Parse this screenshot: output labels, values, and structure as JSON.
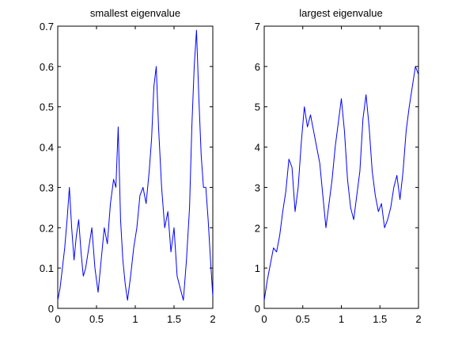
{
  "colors": {
    "line": "#0000ff",
    "axes": "#000000",
    "background": "#ffffff"
  },
  "chart_data": [
    {
      "type": "line",
      "title": "smallest eigenvalue",
      "xlabel": "",
      "ylabel": "",
      "xlim": [
        0,
        2
      ],
      "ylim": [
        0,
        0.7
      ],
      "xticks": [
        0,
        0.5,
        1,
        1.5,
        2
      ],
      "xtick_labels": [
        "0",
        "0.5",
        "1",
        "1.5",
        "2"
      ],
      "yticks": [
        0,
        0.1,
        0.2,
        0.3,
        0.4,
        0.5,
        0.6,
        0.7
      ],
      "ytick_labels": [
        "0",
        "0.1",
        "0.2",
        "0.3",
        "0.4",
        "0.5",
        "0.6",
        "0.7"
      ],
      "grid": false,
      "series": [
        {
          "color": "#0000ff",
          "x": [
            0,
            0.03,
            0.06,
            0.09,
            0.12,
            0.15,
            0.18,
            0.21,
            0.24,
            0.27,
            0.3,
            0.33,
            0.36,
            0.4,
            0.44,
            0.48,
            0.52,
            0.56,
            0.6,
            0.64,
            0.68,
            0.72,
            0.75,
            0.78,
            0.81,
            0.84,
            0.87,
            0.9,
            0.94,
            0.98,
            1.02,
            1.06,
            1.1,
            1.14,
            1.18,
            1.21,
            1.24,
            1.27,
            1.3,
            1.34,
            1.38,
            1.42,
            1.46,
            1.5,
            1.54,
            1.58,
            1.62,
            1.66,
            1.7,
            1.73,
            1.76,
            1.79,
            1.82,
            1.85,
            1.88,
            1.91,
            1.94,
            1.97,
            2.0
          ],
          "y": [
            0.02,
            0.05,
            0.1,
            0.15,
            0.22,
            0.3,
            0.2,
            0.12,
            0.18,
            0.22,
            0.14,
            0.08,
            0.1,
            0.15,
            0.2,
            0.1,
            0.04,
            0.12,
            0.2,
            0.16,
            0.26,
            0.32,
            0.3,
            0.45,
            0.22,
            0.12,
            0.06,
            0.02,
            0.08,
            0.15,
            0.2,
            0.28,
            0.3,
            0.26,
            0.34,
            0.42,
            0.55,
            0.6,
            0.45,
            0.3,
            0.2,
            0.24,
            0.14,
            0.2,
            0.08,
            0.05,
            0.02,
            0.12,
            0.25,
            0.45,
            0.6,
            0.69,
            0.52,
            0.38,
            0.3,
            0.3,
            0.22,
            0.12,
            0.03
          ]
        }
      ]
    },
    {
      "type": "line",
      "title": "largest eigenvalue",
      "xlabel": "",
      "ylabel": "",
      "xlim": [
        0,
        2
      ],
      "ylim": [
        0,
        7
      ],
      "xticks": [
        0,
        0.5,
        1,
        1.5,
        2
      ],
      "xtick_labels": [
        "0",
        "0.5",
        "1",
        "1.5",
        "2"
      ],
      "yticks": [
        0,
        1,
        2,
        3,
        4,
        5,
        6,
        7
      ],
      "ytick_labels": [
        "0",
        "1",
        "2",
        "3",
        "4",
        "5",
        "6",
        "7"
      ],
      "grid": false,
      "series": [
        {
          "color": "#0000ff",
          "x": [
            0,
            0.04,
            0.08,
            0.12,
            0.16,
            0.2,
            0.24,
            0.28,
            0.32,
            0.36,
            0.4,
            0.44,
            0.48,
            0.52,
            0.56,
            0.6,
            0.64,
            0.68,
            0.72,
            0.76,
            0.8,
            0.84,
            0.88,
            0.92,
            0.96,
            1.0,
            1.04,
            1.08,
            1.12,
            1.16,
            1.2,
            1.24,
            1.28,
            1.32,
            1.36,
            1.4,
            1.44,
            1.48,
            1.52,
            1.56,
            1.6,
            1.64,
            1.68,
            1.72,
            1.76,
            1.8,
            1.84,
            1.88,
            1.92,
            1.96,
            2.0
          ],
          "y": [
            0.2,
            0.7,
            1.1,
            1.5,
            1.4,
            1.8,
            2.4,
            2.9,
            3.7,
            3.5,
            2.4,
            3.0,
            4.1,
            5.0,
            4.5,
            4.8,
            4.4,
            4.0,
            3.6,
            2.8,
            2.0,
            2.6,
            3.2,
            4.0,
            4.6,
            5.2,
            4.4,
            3.2,
            2.5,
            2.2,
            2.8,
            3.4,
            4.7,
            5.3,
            4.5,
            3.4,
            2.8,
            2.4,
            2.6,
            2.0,
            2.2,
            2.5,
            3.0,
            3.3,
            2.7,
            3.4,
            4.4,
            5.0,
            5.5,
            6.0,
            5.8
          ]
        }
      ]
    }
  ]
}
